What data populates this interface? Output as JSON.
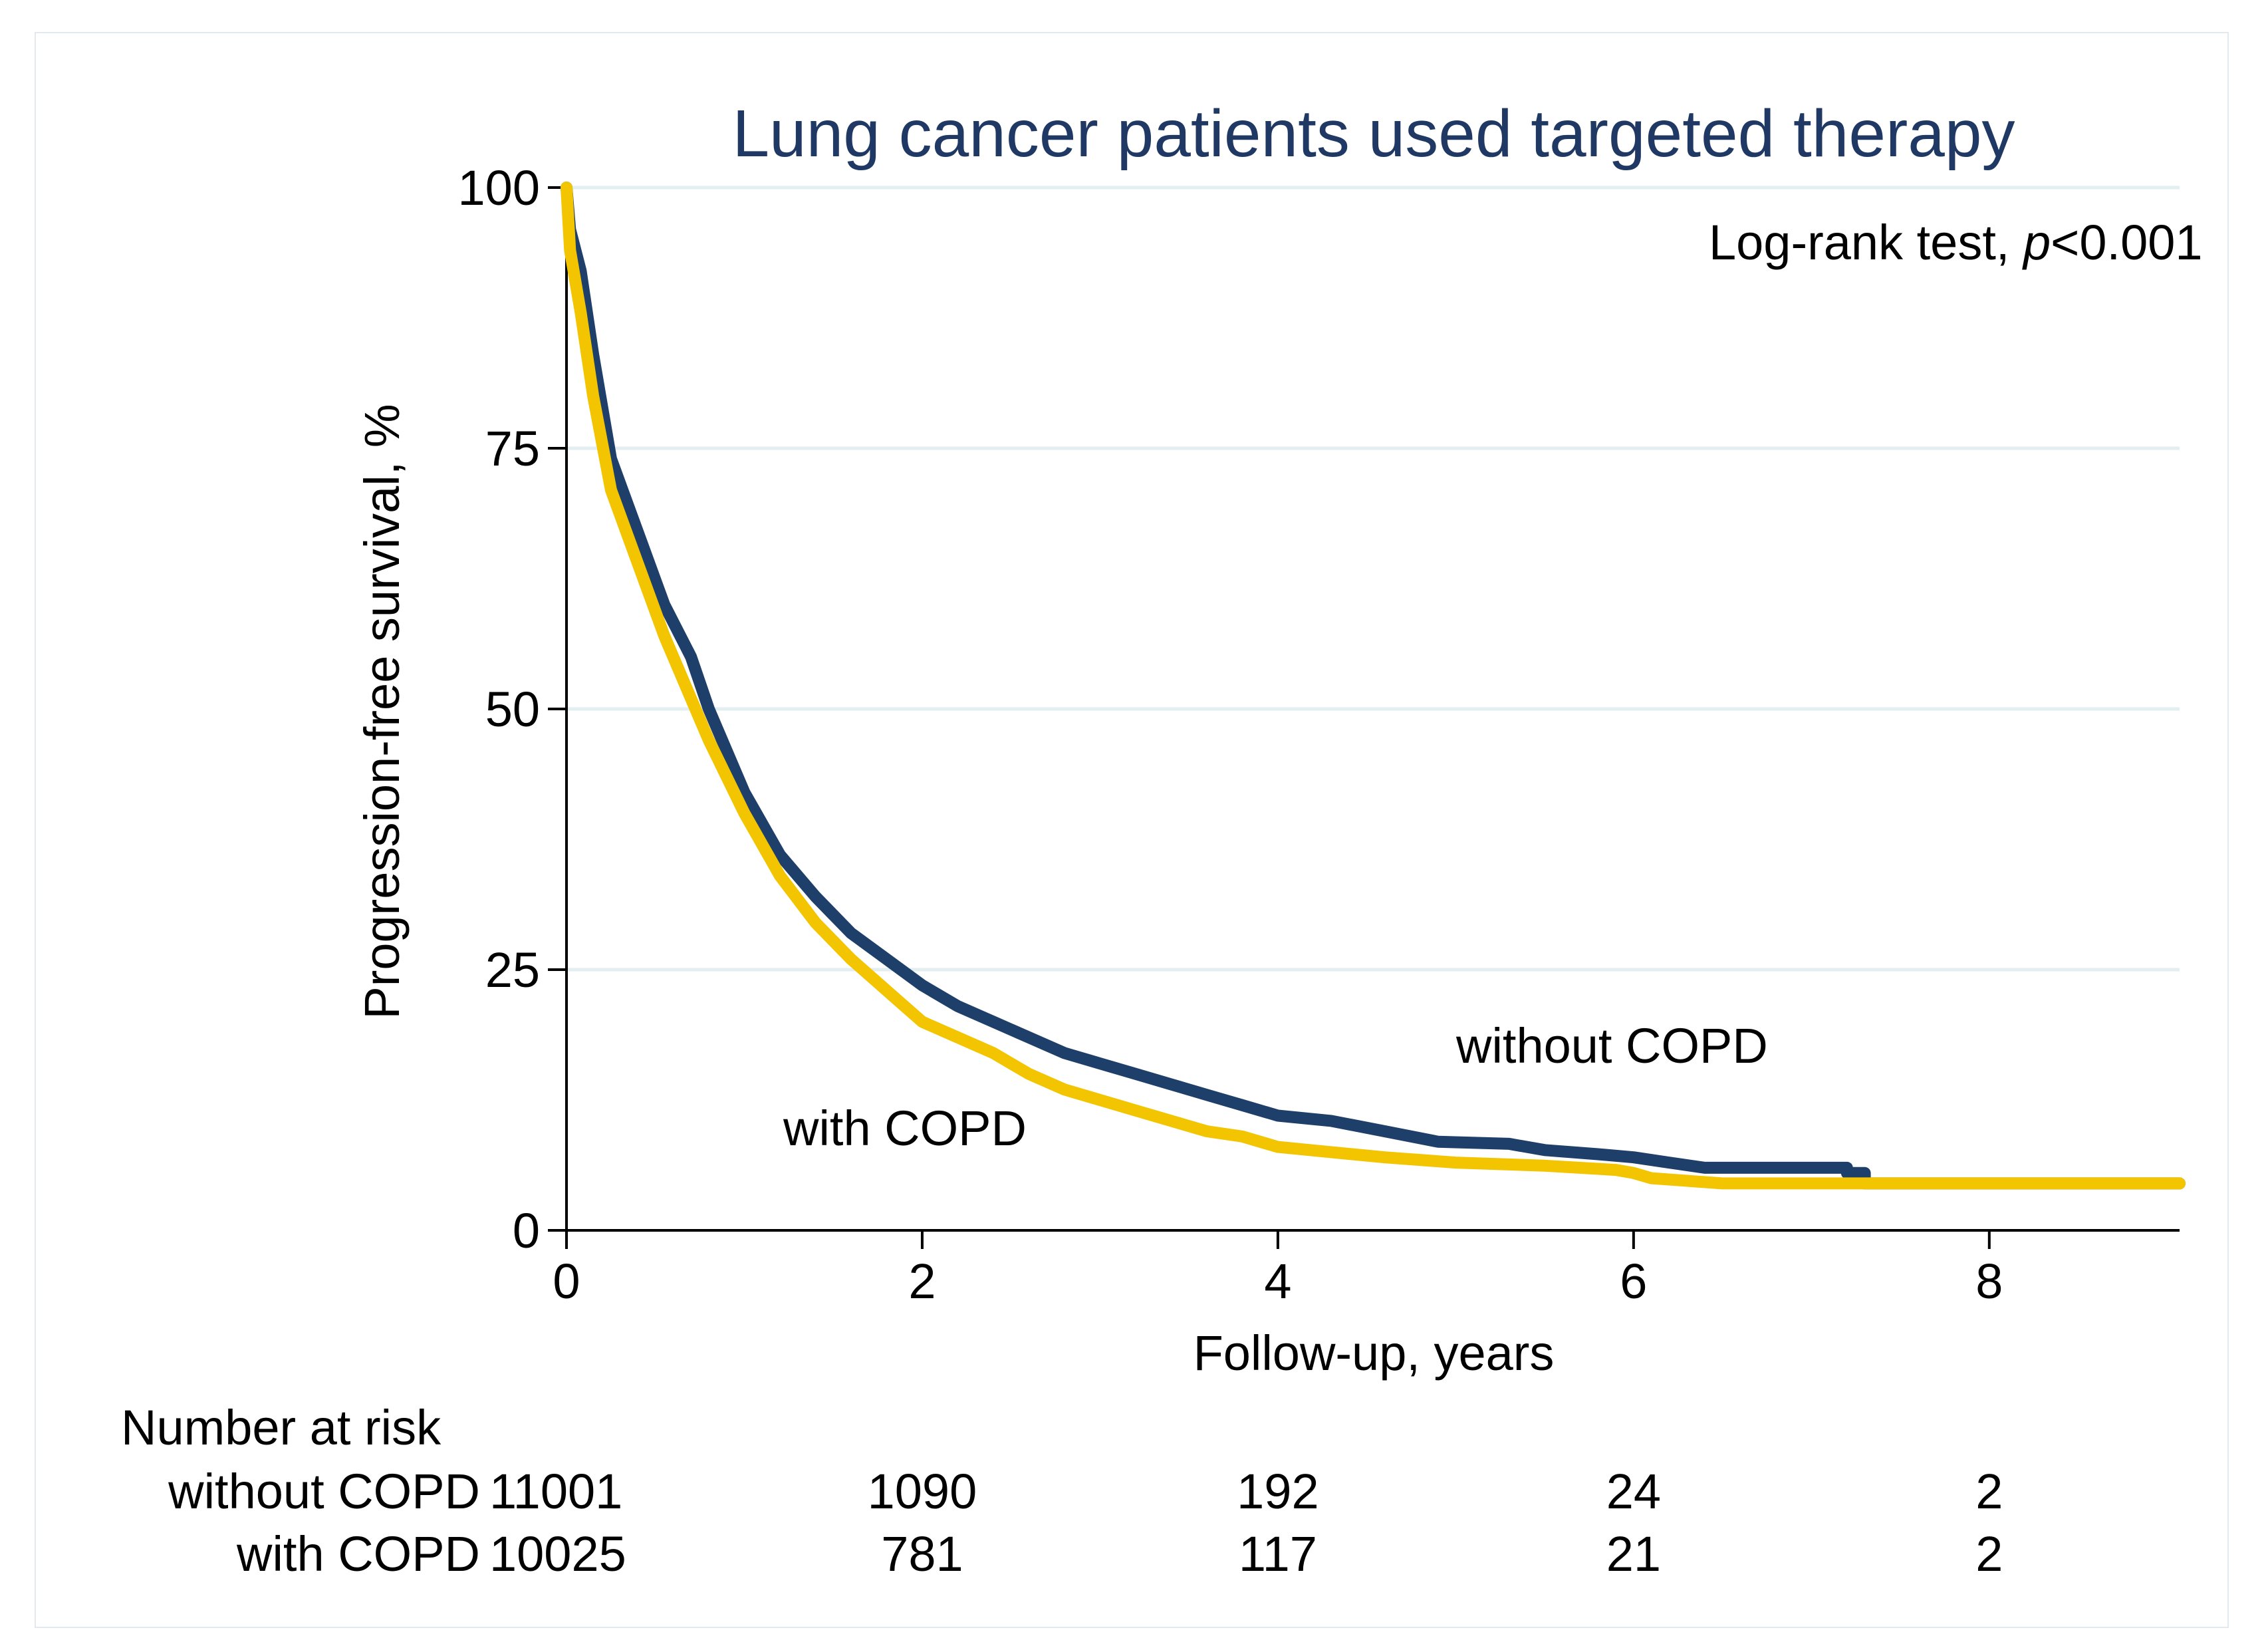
{
  "chart_data": {
    "type": "line",
    "title": "Lung cancer patients used targeted therapy",
    "xlabel": "Follow-up, years",
    "ylabel": "Progression-free survival, %",
    "xlim": [
      0,
      9.07
    ],
    "ylim": [
      0,
      100
    ],
    "xticks": [
      0,
      2,
      4,
      6,
      8
    ],
    "yticks": [
      0,
      25,
      50,
      75,
      100
    ],
    "grid": "horizontal",
    "annotation": {
      "prefix": "Log-rank test, ",
      "italic": "p",
      "suffix": "<0.001"
    },
    "series": [
      {
        "name": "without COPD",
        "color": "#1f3f6b",
        "label": "without COPD",
        "points": [
          [
            0,
            100
          ],
          [
            0.02,
            96
          ],
          [
            0.08,
            92
          ],
          [
            0.15,
            84
          ],
          [
            0.25,
            74
          ],
          [
            0.4,
            67
          ],
          [
            0.55,
            60
          ],
          [
            0.7,
            55
          ],
          [
            0.8,
            50
          ],
          [
            1.0,
            42
          ],
          [
            1.2,
            36
          ],
          [
            1.4,
            32
          ],
          [
            1.6,
            28.5
          ],
          [
            1.8,
            26
          ],
          [
            2.0,
            23.5
          ],
          [
            2.2,
            21.5
          ],
          [
            2.4,
            20
          ],
          [
            2.6,
            18.5
          ],
          [
            2.8,
            17
          ],
          [
            3.0,
            16
          ],
          [
            3.2,
            15
          ],
          [
            3.4,
            14
          ],
          [
            3.6,
            13
          ],
          [
            3.8,
            12
          ],
          [
            4.0,
            11
          ],
          [
            4.3,
            10.5
          ],
          [
            4.6,
            9.5
          ],
          [
            4.9,
            8.5
          ],
          [
            5.3,
            8.3
          ],
          [
            5.5,
            7.7
          ],
          [
            5.8,
            7.3
          ],
          [
            6.0,
            7.0
          ],
          [
            6.2,
            6.5
          ],
          [
            6.4,
            6.0
          ],
          [
            7.2,
            6.0
          ],
          [
            7.2,
            5.5
          ],
          [
            7.3,
            5.5
          ],
          [
            7.3,
            4.5
          ],
          [
            9.07,
            4.5
          ]
        ]
      },
      {
        "name": "with COPD",
        "color": "#f2c500",
        "label": "with COPD",
        "points": [
          [
            0,
            100
          ],
          [
            0.02,
            94
          ],
          [
            0.08,
            88
          ],
          [
            0.15,
            80
          ],
          [
            0.25,
            71
          ],
          [
            0.4,
            64
          ],
          [
            0.55,
            57
          ],
          [
            0.7,
            51
          ],
          [
            0.8,
            47
          ],
          [
            1.0,
            40
          ],
          [
            1.2,
            34
          ],
          [
            1.4,
            29.5
          ],
          [
            1.6,
            26
          ],
          [
            1.8,
            23
          ],
          [
            2.0,
            20
          ],
          [
            2.2,
            18.5
          ],
          [
            2.4,
            17
          ],
          [
            2.6,
            15
          ],
          [
            2.8,
            13.5
          ],
          [
            3.0,
            12.5
          ],
          [
            3.2,
            11.5
          ],
          [
            3.4,
            10.5
          ],
          [
            3.6,
            9.5
          ],
          [
            3.8,
            9
          ],
          [
            4.0,
            8
          ],
          [
            4.3,
            7.5
          ],
          [
            4.6,
            7
          ],
          [
            5.0,
            6.5
          ],
          [
            5.5,
            6.2
          ],
          [
            5.9,
            5.8
          ],
          [
            6.0,
            5.5
          ],
          [
            6.1,
            5.0
          ],
          [
            6.5,
            4.5
          ],
          [
            9.07,
            4.5
          ]
        ]
      }
    ],
    "risk_table": {
      "header": "Number at risk",
      "times": [
        0,
        2,
        4,
        6,
        8
      ],
      "rows": [
        {
          "label": "without COPD",
          "values": [
            "11001",
            "1090",
            "192",
            "24",
            "2"
          ]
        },
        {
          "label": "with COPD",
          "values": [
            "10025",
            "781",
            "117",
            "21",
            "2"
          ]
        }
      ]
    }
  }
}
